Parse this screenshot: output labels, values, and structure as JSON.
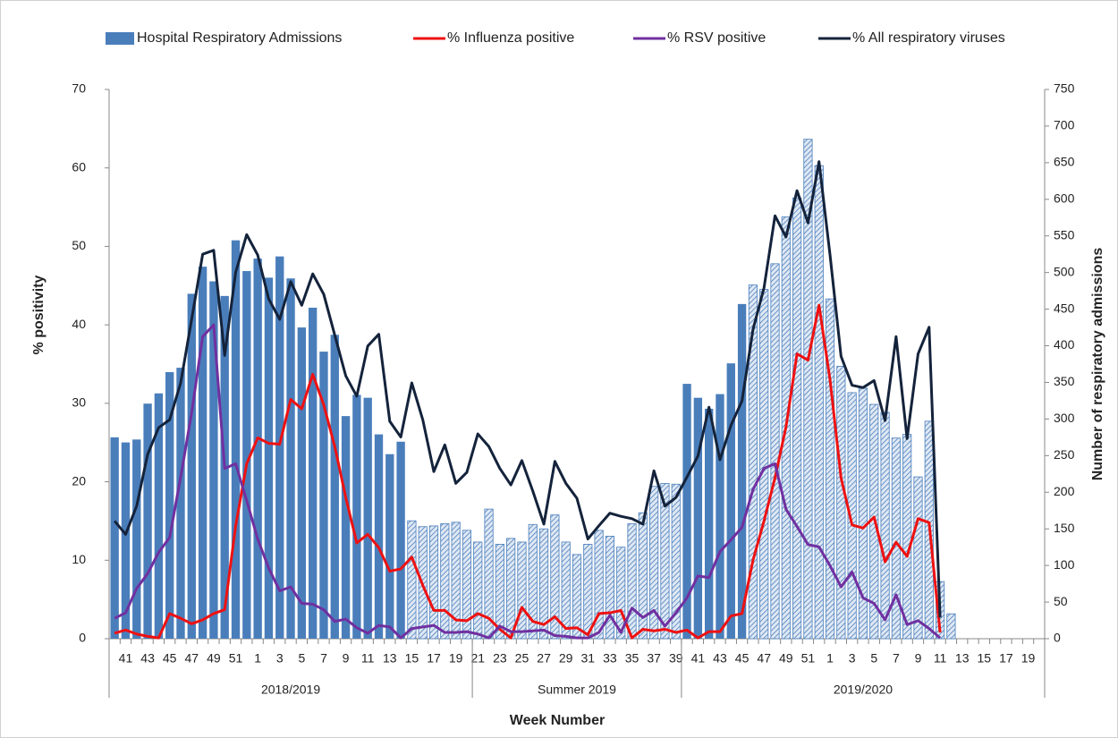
{
  "chart_data": {
    "type": "combo",
    "categories": [
      null,
      "41",
      null,
      "43",
      null,
      "45",
      null,
      "47",
      null,
      "49",
      null,
      "51",
      null,
      "1",
      null,
      "3",
      null,
      "5",
      null,
      "7",
      null,
      "9",
      null,
      "11",
      null,
      "13",
      null,
      "15",
      null,
      "17",
      null,
      "19",
      null,
      "21",
      null,
      "23",
      null,
      "25",
      null,
      "27",
      null,
      "29",
      null,
      "31",
      null,
      "33",
      null,
      "35",
      null,
      "37",
      null,
      "39",
      null,
      "41",
      null,
      "43",
      null,
      "45",
      null,
      "47",
      null,
      "49",
      null,
      "51",
      null,
      "1",
      null,
      "3",
      null,
      "5",
      null,
      "7",
      null,
      "9",
      null,
      "11",
      null,
      "13",
      null,
      "15",
      null,
      "17",
      null,
      "19",
      null
    ],
    "x_groups": [
      {
        "label": "2018/2019",
        "count": 33
      },
      {
        "label": "Summer 2019",
        "count": 19
      },
      {
        "label": "2019/2020",
        "count": 33
      }
    ],
    "xlabel": "Week Number",
    "ylabel": "% positivity",
    "y2label": "Number of respiratory admissions",
    "ylim": [
      0,
      70
    ],
    "yticks": [
      0,
      10,
      20,
      30,
      40,
      50,
      60,
      70
    ],
    "y2lim": [
      0,
      750
    ],
    "y2ticks": [
      0,
      50,
      100,
      150,
      200,
      250,
      300,
      350,
      400,
      450,
      500,
      550,
      600,
      650,
      700,
      750
    ],
    "legend": "top",
    "series": [
      {
        "name": "Hospital Respiratory Admissions",
        "type": "bar",
        "axis": "y2",
        "color": "#4a7ebb",
        "values": [
          275,
          268,
          272,
          321,
          335,
          364,
          370,
          471,
          508,
          488,
          468,
          544,
          502,
          519,
          493,
          522,
          492,
          425,
          452,
          392,
          415,
          304,
          333,
          329,
          279,
          252,
          269,
          161,
          153,
          154,
          157,
          159,
          148,
          132,
          177,
          129,
          137,
          132,
          156,
          150,
          169,
          132,
          115,
          129,
          148,
          140,
          125,
          157,
          172,
          208,
          212,
          211,
          348,
          329,
          314,
          334,
          376,
          457,
          483,
          477,
          512,
          576,
          602,
          682,
          646,
          464,
          372,
          336,
          342,
          320,
          309,
          274,
          279,
          221,
          297,
          78,
          34,
          null,
          null,
          null,
          null,
          null,
          null,
          null,
          null
        ],
        "hatched": [
          false,
          false,
          false,
          false,
          false,
          false,
          false,
          false,
          false,
          false,
          false,
          false,
          false,
          false,
          false,
          false,
          false,
          false,
          false,
          false,
          false,
          false,
          false,
          false,
          false,
          false,
          false,
          true,
          true,
          true,
          true,
          true,
          true,
          true,
          true,
          true,
          true,
          true,
          true,
          true,
          true,
          true,
          true,
          true,
          true,
          true,
          true,
          true,
          true,
          true,
          true,
          true,
          false,
          false,
          false,
          false,
          false,
          false,
          true,
          true,
          true,
          true,
          true,
          true,
          true,
          true,
          true,
          true,
          true,
          true,
          true,
          true,
          true,
          true,
          true,
          true,
          true,
          true,
          true,
          true,
          true,
          true,
          true,
          true,
          true
        ]
      },
      {
        "name": "% Influenza positive",
        "type": "line",
        "color": "#ee1111",
        "values": [
          0.7,
          1.1,
          0.6,
          0.3,
          0.1,
          3.2,
          2.6,
          1.9,
          2.4,
          3.2,
          3.7,
          14.4,
          22.3,
          25.6,
          24.9,
          24.8,
          30.5,
          29.3,
          33.7,
          29.8,
          24.5,
          18,
          12.2,
          13.3,
          11.6,
          8.6,
          8.9,
          10.4,
          6.8,
          3.6,
          3.6,
          2.4,
          2.3,
          3.2,
          2.6,
          1.2,
          0.1,
          4,
          2.2,
          1.8,
          2.8,
          1.3,
          1.4,
          0.5,
          3.2,
          3.3,
          3.6,
          0.1,
          1.2,
          1,
          1.2,
          0.8,
          1.1,
          0.1,
          0.9,
          0.9,
          2.9,
          3.2,
          10,
          15,
          20.5,
          27,
          36.3,
          35.5,
          42.5,
          33,
          20.5,
          14.5,
          14.1,
          15.5,
          9.8,
          12.3,
          10.5,
          15.3,
          14.8,
          0.8,
          null,
          null,
          null,
          null,
          null,
          null,
          null,
          null,
          null
        ]
      },
      {
        "name": "% RSV positive",
        "type": "line",
        "color": "#7030a0",
        "values": [
          2.6,
          3.3,
          6.4,
          8.3,
          11,
          12.9,
          20.6,
          28.8,
          38.5,
          40,
          21.7,
          22.3,
          17.6,
          12.7,
          9,
          6.1,
          6.6,
          4.5,
          4.4,
          3.7,
          2.2,
          2.5,
          1.4,
          0.7,
          1.7,
          1.5,
          0.1,
          1.3,
          1.5,
          1.7,
          0.8,
          0.8,
          0.9,
          0.6,
          0.1,
          1.6,
          0.9,
          0.9,
          1,
          1.1,
          0.4,
          0.3,
          0.1,
          0.1,
          0.8,
          3,
          0.8,
          3.9,
          2.7,
          3.6,
          1.6,
          3.3,
          5.2,
          8,
          7.8,
          11.1,
          12.6,
          14.2,
          19,
          21.7,
          22.3,
          16.5,
          14.3,
          12,
          11.7,
          9.3,
          6.6,
          8.5,
          5.2,
          4.5,
          2.4,
          5.6,
          1.8,
          2.3,
          1.3,
          0.1,
          null,
          null,
          null,
          null,
          null,
          null,
          null,
          null,
          null
        ]
      },
      {
        "name": "% All respiratory viruses",
        "type": "line",
        "color": "#14233b",
        "values": [
          15,
          13.3,
          16.9,
          23.5,
          26.9,
          27.9,
          32.6,
          40.7,
          49,
          49.5,
          36.1,
          46.7,
          51.5,
          48.9,
          43.3,
          40.7,
          45.5,
          42.5,
          46.5,
          43.9,
          38.7,
          33.5,
          30.9,
          37.3,
          38.8,
          27.7,
          25.7,
          32.6,
          27.9,
          21.3,
          24.7,
          19.8,
          21.2,
          26.1,
          24.5,
          21.7,
          19.6,
          22.7,
          18.8,
          14.6,
          22.6,
          19.8,
          17.9,
          12.7,
          14.4,
          16,
          15.6,
          15.3,
          14.6,
          21.4,
          16.9,
          18,
          20.6,
          23.3,
          29.5,
          22.8,
          27.2,
          30.3,
          39.4,
          44.7,
          53.9,
          51.2,
          57.1,
          53,
          60.8,
          48.9,
          36,
          32.3,
          32,
          32.9,
          27.8,
          38.5,
          25.5,
          36.3,
          39.7,
          2.7,
          null,
          null,
          null,
          null,
          null,
          null,
          null,
          null,
          null
        ]
      }
    ]
  }
}
